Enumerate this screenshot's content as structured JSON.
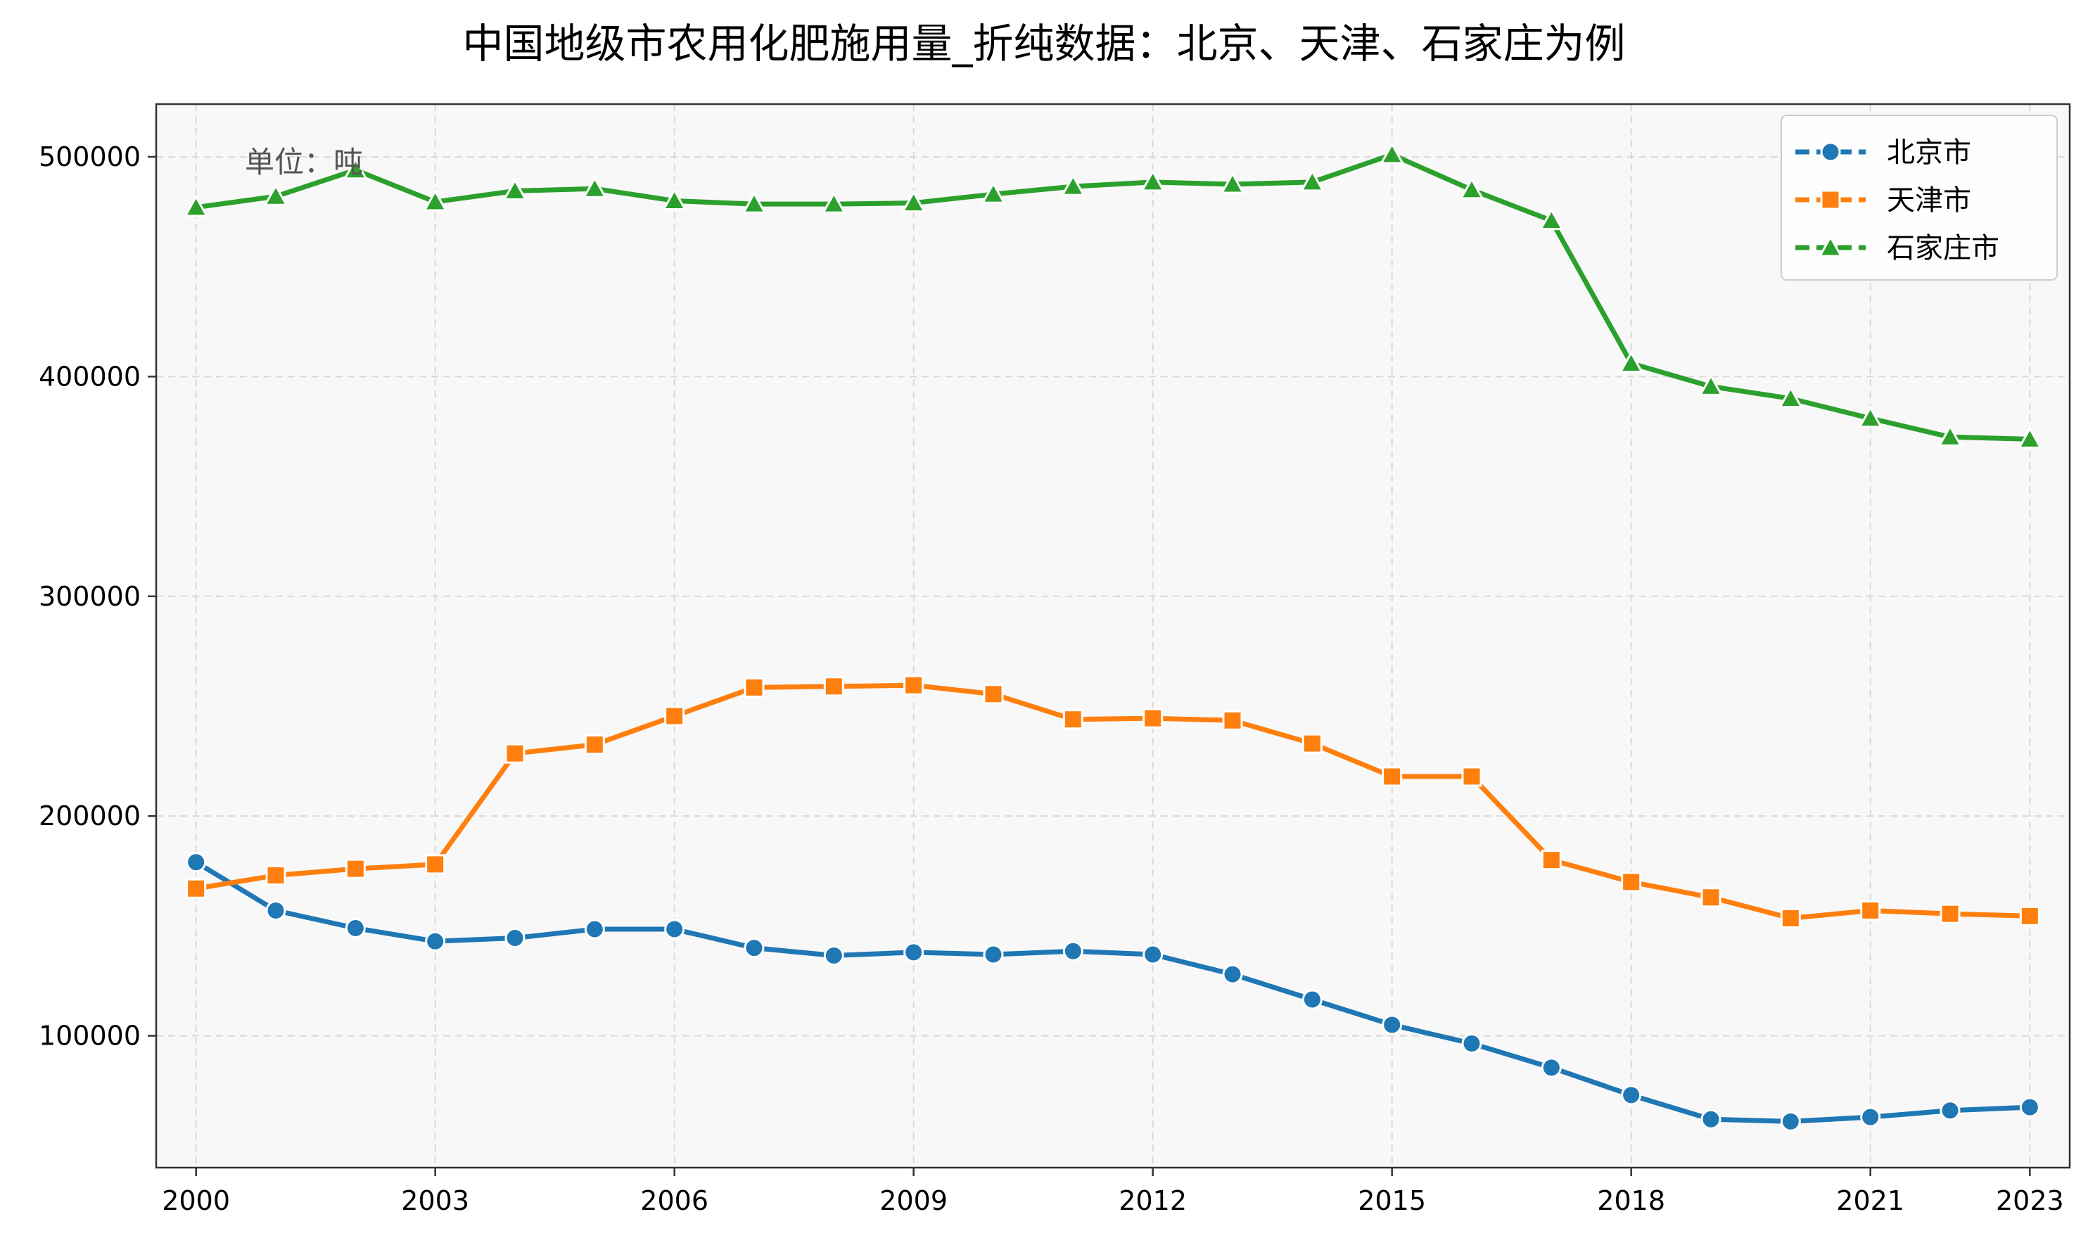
{
  "chart_data": {
    "type": "line",
    "title": "中国地级市农用化肥施用量_折纯数据：北京、天津、石家庄为例",
    "annotation": "单位：吨",
    "xlabel": "",
    "ylabel": "",
    "x": [
      2000,
      2001,
      2002,
      2003,
      2004,
      2005,
      2006,
      2007,
      2008,
      2009,
      2010,
      2011,
      2012,
      2013,
      2014,
      2015,
      2016,
      2017,
      2018,
      2019,
      2020,
      2021,
      2022,
      2023
    ],
    "xticks": [
      "2000",
      "2003",
      "2006",
      "2009",
      "2012",
      "2015",
      "2018",
      "2021",
      "2023"
    ],
    "yticks": [
      "100000",
      "200000",
      "300000",
      "400000",
      "500000"
    ],
    "xlim": [
      1999.5,
      2023.5
    ],
    "ylim": [
      40000,
      524000
    ],
    "grid": true,
    "legend_position": "top-right",
    "series": [
      {
        "name": "北京市",
        "color": "#1f77b4",
        "marker": "circle",
        "values": [
          179000,
          157000,
          149000,
          143000,
          144500,
          148500,
          148500,
          140000,
          136500,
          138000,
          137000,
          138500,
          137000,
          128000,
          116500,
          105000,
          96500,
          85500,
          73000,
          62000,
          61000,
          63000,
          66000,
          67500
        ]
      },
      {
        "name": "天津市",
        "color": "#ff7f0e",
        "marker": "square",
        "values": [
          167000,
          173000,
          176000,
          178000,
          228500,
          232500,
          245500,
          258500,
          259000,
          259500,
          255500,
          244000,
          244500,
          243500,
          233000,
          218000,
          218000,
          180000,
          170000,
          163000,
          153500,
          157000,
          155500,
          154500
        ]
      },
      {
        "name": "石家庄市",
        "color": "#2ca02c",
        "marker": "triangle",
        "values": [
          477000,
          482000,
          494000,
          479500,
          484500,
          485500,
          480000,
          478500,
          478500,
          479000,
          483000,
          486500,
          488500,
          487500,
          488500,
          501000,
          485000,
          471000,
          406000,
          395500,
          390000,
          381000,
          372500,
          371500
        ]
      }
    ]
  }
}
